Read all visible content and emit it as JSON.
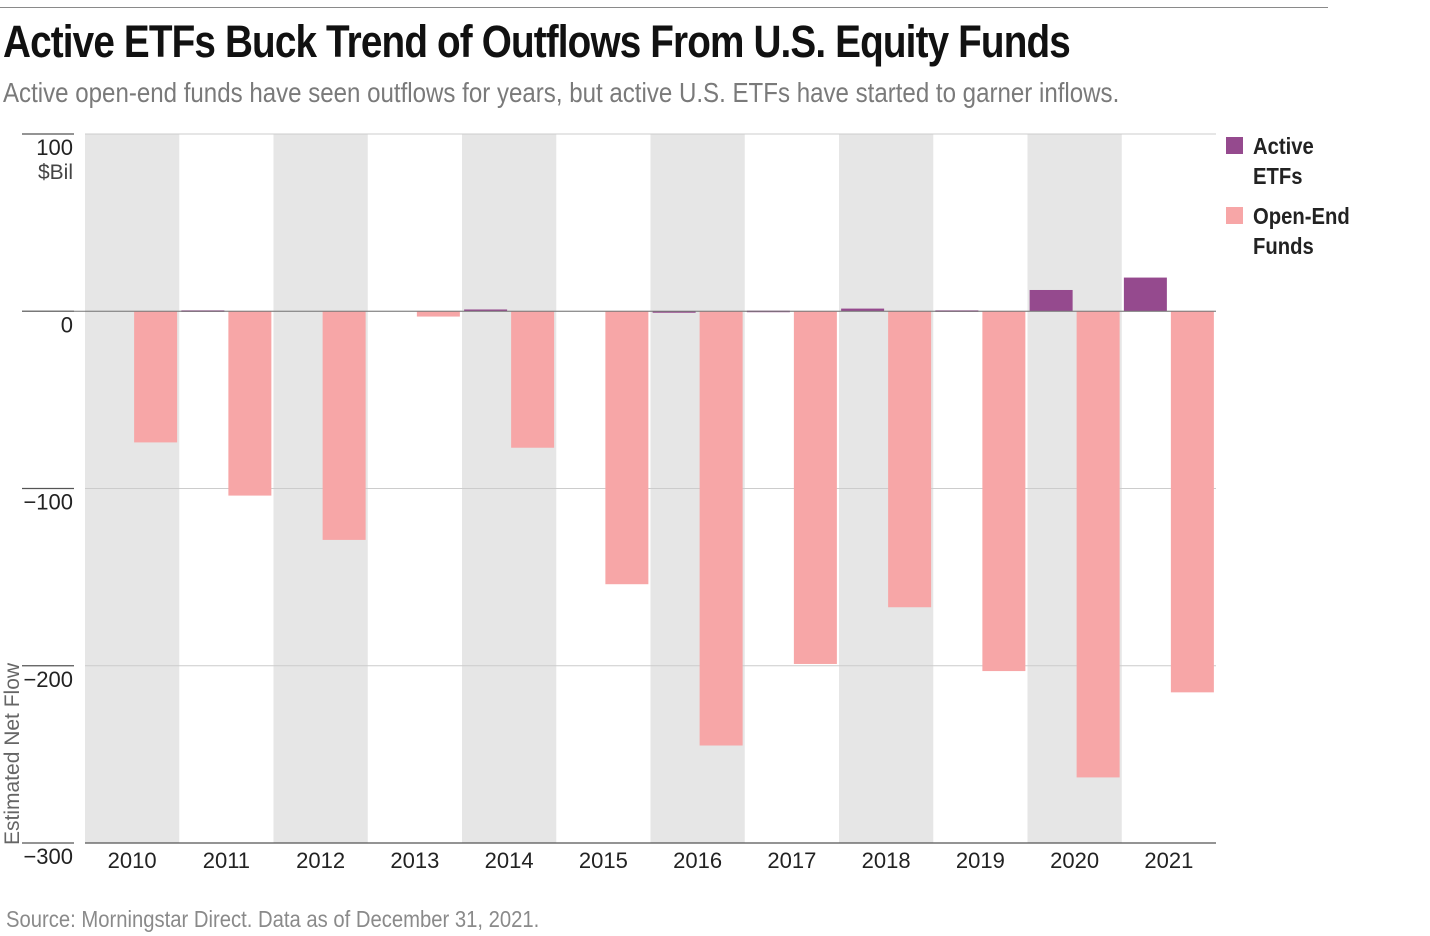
{
  "title": "Active ETFs Buck Trend of Outflows From U.S. Equity Funds",
  "subtitle": "Active open-end funds have seen outflows for years, but active U.S. ETFs have started to garner inflows.",
  "source": "Source: Morningstar Direct. Data as of December 31, 2021.",
  "colors": {
    "active_etfs": "#954a8e",
    "open_end_funds": "#f7a6a7",
    "band": "#e6e6e6",
    "grid": "#cccccc"
  },
  "chart_data": {
    "type": "bar",
    "ylabel": "Estimated Net Flow",
    "yunit": "$Bil",
    "ylim": [
      -300,
      100
    ],
    "yticks": [
      100,
      0,
      -100,
      -200,
      -300
    ],
    "ytick_labels": [
      "100",
      "0",
      "−100",
      "−200",
      "−300"
    ],
    "grid": true,
    "legend_position": "right",
    "categories": [
      "2010",
      "2011",
      "2012",
      "2013",
      "2014",
      "2015",
      "2016",
      "2017",
      "2018",
      "2019",
      "2020",
      "2021"
    ],
    "series": [
      {
        "name": "Active ETFs",
        "values": [
          0,
          0.5,
          0,
          0,
          1,
          0,
          -0.5,
          0.3,
          1.5,
          0.5,
          12,
          19
        ]
      },
      {
        "name": "Open-End Funds",
        "values": [
          -74,
          -104,
          -129,
          -3,
          -77,
          -154,
          -245,
          -199,
          -167,
          -203,
          -263,
          -215
        ]
      }
    ]
  }
}
